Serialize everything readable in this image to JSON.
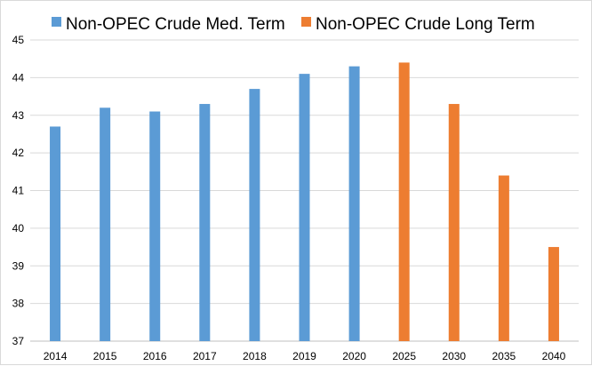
{
  "chart_data": {
    "type": "bar",
    "title": "",
    "xlabel": "",
    "ylabel": "",
    "ylim": [
      37,
      45
    ],
    "yticks": [
      37,
      38,
      39,
      40,
      41,
      42,
      43,
      44,
      45
    ],
    "grid": "horizontal",
    "legend_position": "top",
    "categories": [
      "2014",
      "2015",
      "2016",
      "2017",
      "2018",
      "2019",
      "2020",
      "2025",
      "2030",
      "2035",
      "2040"
    ],
    "series": [
      {
        "name": "Non-OPEC Crude Med. Term",
        "color": "#5b9bd5",
        "values": [
          42.7,
          43.2,
          43.1,
          43.3,
          43.7,
          44.1,
          44.3,
          null,
          null,
          null,
          null
        ]
      },
      {
        "name": "Non-OPEC Crude Long Term",
        "color": "#ed7d31",
        "values": [
          null,
          null,
          null,
          null,
          null,
          null,
          null,
          44.4,
          43.3,
          41.4,
          39.5
        ]
      }
    ]
  }
}
